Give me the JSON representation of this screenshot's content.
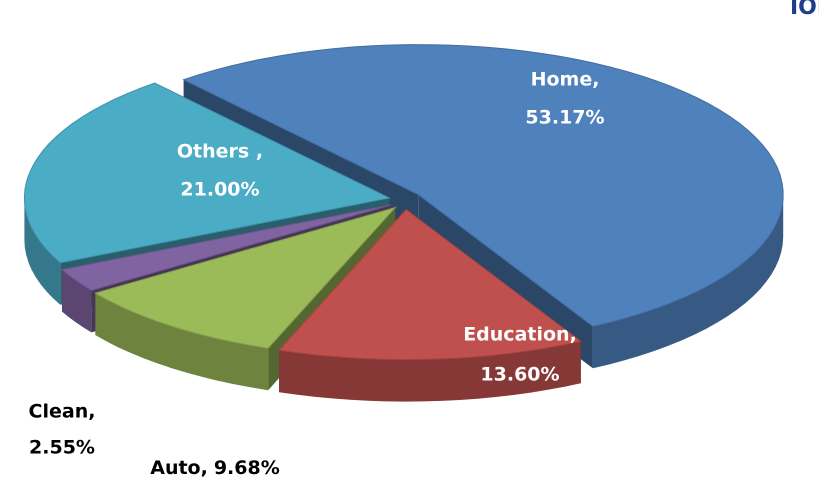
{
  "chart_data": {
    "type": "pie",
    "annotation": "IOE",
    "categories": [
      "Home,",
      "Education,",
      "Auto,",
      "Clean,",
      "Others ,"
    ],
    "values": [
      53.17,
      13.6,
      9.68,
      2.55,
      21.0
    ],
    "value_labels": [
      "53.17%",
      "13.60%",
      "9.68%",
      "2.55%",
      "21.00%"
    ],
    "colors": [
      "#4f81bd",
      "#c0504d",
      "#9bbb59",
      "#8064a2",
      "#4bacc6"
    ]
  }
}
